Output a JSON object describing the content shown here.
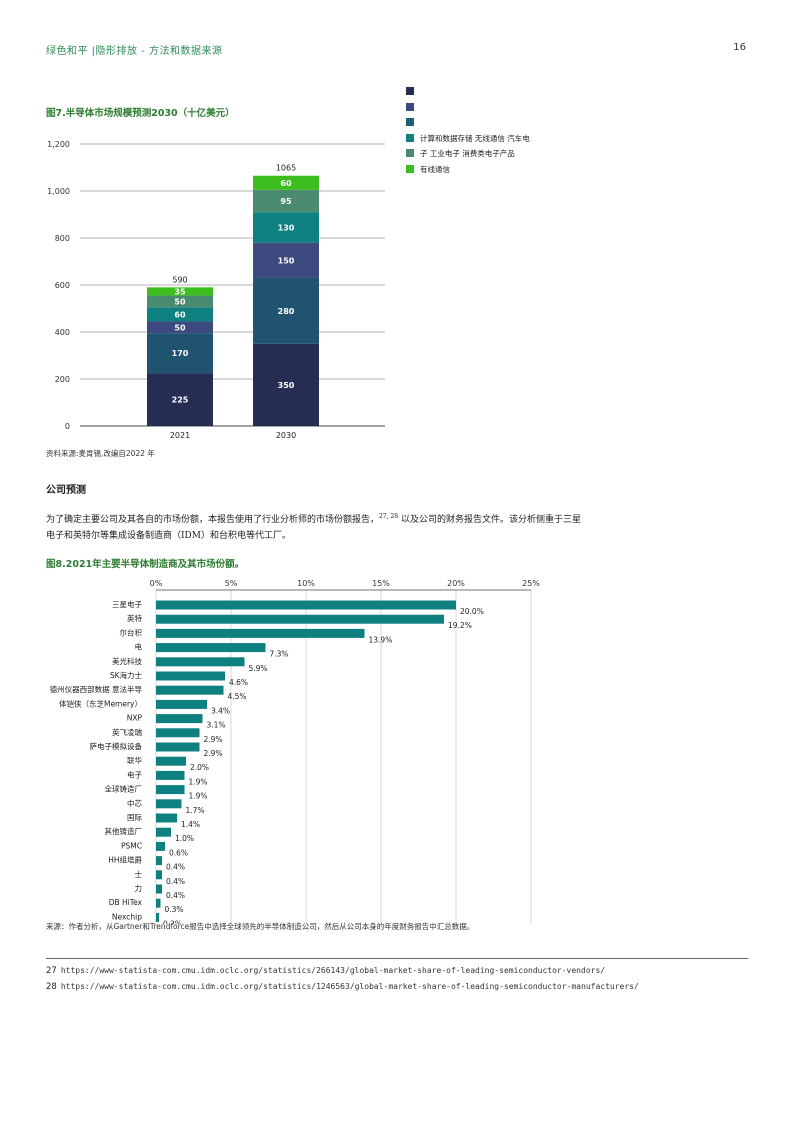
{
  "header": {
    "left": "绿色和平 |隐形排放 - 方法和数据来源",
    "page_number": "16"
  },
  "figure7": {
    "title": "图7.半导体市场规模预测2030（十亿美元）",
    "source": "资料来源:麦肯锡,改编自2022 年",
    "legend": [
      {
        "label": "",
        "color": "#252e52"
      },
      {
        "label": "",
        "color": "#3d4a80"
      },
      {
        "label": "",
        "color": "#1f5f78"
      },
      {
        "label": "计算和数据存储 无线通信 汽车电",
        "color": "#0e8080"
      },
      {
        "label": "子 工业电子 消费类电子产品",
        "color": "#4a8a6e"
      },
      {
        "label": "有线通信",
        "color": "#3cbf1e"
      }
    ]
  },
  "chart_data": [
    {
      "type": "bar",
      "stacked": true,
      "title": "图7.半导体市场规模预测2030（十亿美元）",
      "categories": [
        "2021",
        "2030"
      ],
      "totals": [
        "590",
        "1065"
      ],
      "y_ticks": [
        "0",
        "200",
        "400",
        "600",
        "800",
        "1,000",
        "1,200"
      ],
      "ylim": [
        0,
        1200
      ],
      "grid": true,
      "series": [
        {
          "values": [
            225,
            350
          ],
          "color": "#252e52"
        },
        {
          "values": [
            170,
            280
          ],
          "color": "#1f5370"
        },
        {
          "values": [
            50,
            150
          ],
          "color": "#3d4a80"
        },
        {
          "values": [
            60,
            130
          ],
          "color": "#0e8080"
        },
        {
          "values": [
            50,
            95
          ],
          "color": "#4a8a6e"
        },
        {
          "values": [
            35,
            60
          ],
          "color": "#3cbf1e"
        }
      ]
    },
    {
      "type": "bar",
      "orientation": "horizontal",
      "title": "图8.2021年主要半导体制造商及其市场份额。",
      "x_ticks": [
        "0%",
        "5%",
        "10%",
        "15%",
        "20%",
        "25%"
      ],
      "xlim": [
        0,
        25
      ],
      "bar_color": "#0e8080",
      "categories": [
        "三星电子",
        "英特",
        "尔台积",
        "电",
        "美光科技",
        "SK海力士",
        "德州仪器西部数据 意法半导",
        "体铠侠（东芝Memery）",
        "NXP",
        "英飞凌瑞",
        "萨电子模拟设备",
        "联华",
        "电子",
        "全球铸造厂",
        "中芯",
        "国际",
        "其他铸造厂",
        "PSMC",
        "HH组塔爵",
        "士",
        "力",
        "DB HiTex",
        "Nexchip",
        ""
      ],
      "values": [
        20.0,
        19.2,
        13.9,
        7.3,
        5.9,
        4.6,
        4.5,
        3.4,
        3.1,
        2.9,
        2.9,
        2.0,
        1.9,
        1.9,
        1.7,
        1.4,
        1.0,
        0.6,
        0.4,
        0.4,
        0.4,
        0.3,
        0.2,
        0.1
      ],
      "value_labels": [
        "20.0%",
        "19.2%",
        "13.9%",
        "7.3%",
        "5.9%",
        "4.6%",
        "4.5%",
        "3.4%",
        "3.1%",
        "2.9%",
        "2.9%",
        "2.0%",
        "1.9%",
        "1.9%",
        "1.7%",
        "1.4%",
        "1.0%",
        "0.6%",
        "0.4%",
        "0.4%",
        "0.4%",
        "0.3%",
        "0.2%",
        ""
      ]
    }
  ],
  "section": {
    "heading": "公司预测",
    "body_part1": "为了确定主要公司及其各自的市场份额，本报告使用了行业分析师的市场份额报告，",
    "body_sup": "27, 28",
    "body_part2": " 以及公司的财务报告文件。该分析侧重于三星电子和英特尔等集成设备制造商（IDM）和台积电等代工厂。"
  },
  "figure8": {
    "title": "图8.2021年主要半导体制造商及其市场份额。",
    "source": "来源：作者分析，从Gartner和Trendforce报告中选择全球领先的半导体制造公司，然后从公司本身的年度财务报告中汇总数据。"
  },
  "footnotes": [
    {
      "num": "27",
      "text": "https://www-statista-com.cmu.idm.oclc.org/statistics/266143/global-market-share-of-leading-semiconductor-vendors/"
    },
    {
      "num": "28",
      "text": "https://www-statista-com.cmu.idm.oclc.org/statistics/1246563/global-market-share-of-leading-semiconductor-manufacturers/"
    }
  ]
}
